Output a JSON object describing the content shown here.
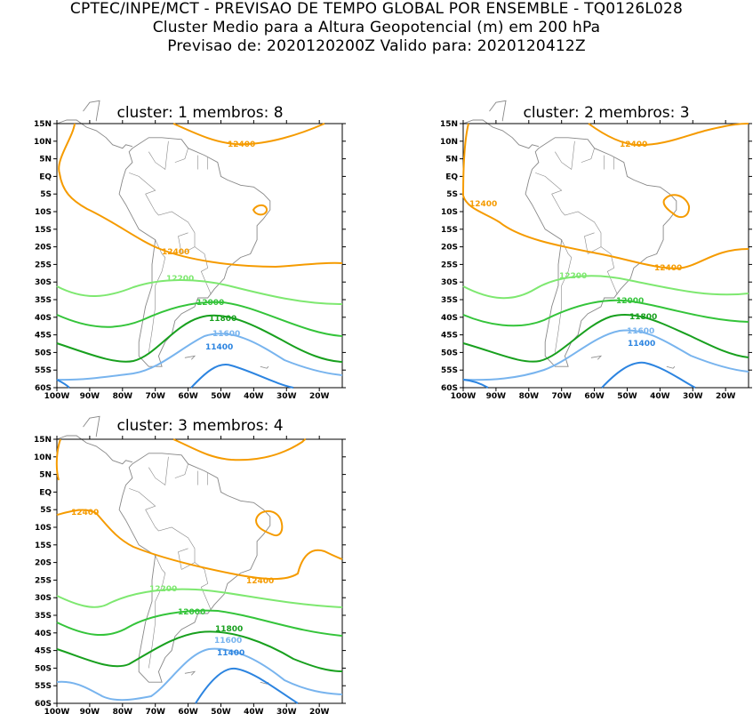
{
  "header": {
    "line1": "CPTEC/INPE/MCT - PREVISAO DE TEMPO GLOBAL POR ENSEMBLE - TQ0126L028",
    "line2": "Cluster Medio para a Altura Geopotencial (m) em 200 hPa",
    "line3": "Previsao de: 2020120200Z   Valido para: 2020120412Z"
  },
  "axes": {
    "lat_labels": [
      "15N",
      "10N",
      "5N",
      "EQ",
      "5S",
      "10S",
      "15S",
      "20S",
      "25S",
      "30S",
      "35S",
      "40S",
      "45S",
      "50S",
      "55S",
      "60S"
    ],
    "lon_labels": [
      "100W",
      "90W",
      "80W",
      "70W",
      "60W",
      "50W",
      "40W",
      "30W",
      "20W"
    ]
  },
  "contour_colors": {
    "12400": "#f59b00",
    "12200": "#7ee870",
    "12000": "#34c43a",
    "11800": "#18a01e",
    "11600": "#78b4ee",
    "11400": "#2c84e0",
    "coast": "#888888"
  },
  "panels": [
    {
      "title": "cluster: 1   membros: 8",
      "labels": [
        "12400",
        "12400",
        "12200",
        "12000",
        "11800",
        "11600",
        "11400"
      ]
    },
    {
      "title": "cluster: 2   membros: 3",
      "labels": [
        "12400",
        "12400",
        "12400",
        "12200",
        "12000",
        "11800",
        "11600",
        "11400"
      ]
    },
    {
      "title": "cluster: 3   membros: 4",
      "labels": [
        "12400",
        "12400",
        "12200",
        "12000",
        "11800",
        "11600",
        "11400"
      ]
    }
  ]
}
